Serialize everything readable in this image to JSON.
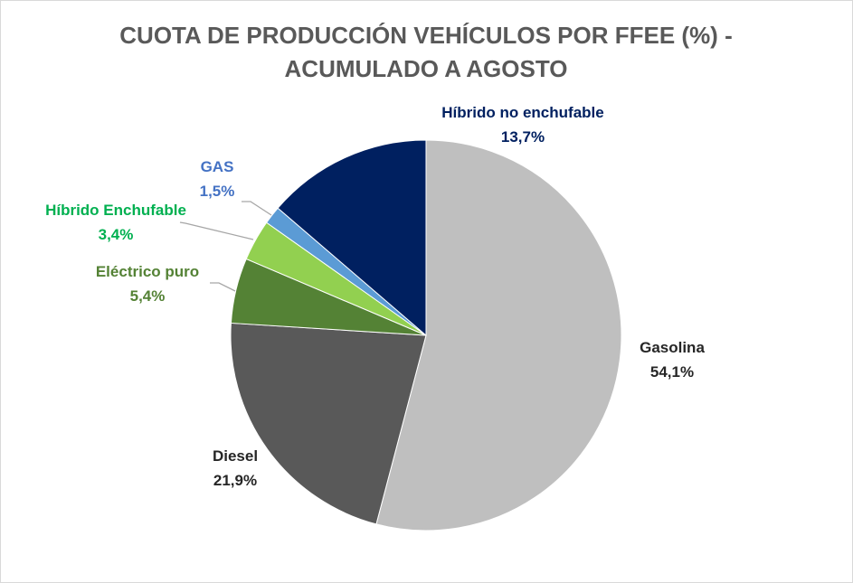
{
  "chart_data": {
    "type": "pie",
    "title": [
      "CUOTA DE PRODUCCIÓN VEHÍCULOS POR FFEE (%) -",
      "ACUMULADO A AGOSTO"
    ],
    "start_angle": "12 o'clock, clockwise",
    "slices": [
      {
        "name": "Gasolina",
        "value": 54.1,
        "label": "54,1%",
        "color": "#bfbfbf",
        "label_color": "#262626"
      },
      {
        "name": "Diesel",
        "value": 21.9,
        "label": "21,9%",
        "color": "#595959",
        "label_color": "#262626"
      },
      {
        "name": "Eléctrico puro",
        "value": 5.4,
        "label": "5,4%",
        "color": "#548235",
        "label_color": "#548235"
      },
      {
        "name": "Híbrido Enchufable",
        "value": 3.4,
        "label": "3,4%",
        "color": "#92d050",
        "label_color": "#00b050"
      },
      {
        "name": "GAS",
        "value": 1.5,
        "label": "1,5%",
        "color": "#5b9bd5",
        "label_color": "#4472c4"
      },
      {
        "name": "Híbrido no enchufable",
        "value": 13.7,
        "label": "13,7%",
        "color": "#002060",
        "label_color": "#002060"
      }
    ],
    "legend": "none (data labels)"
  }
}
